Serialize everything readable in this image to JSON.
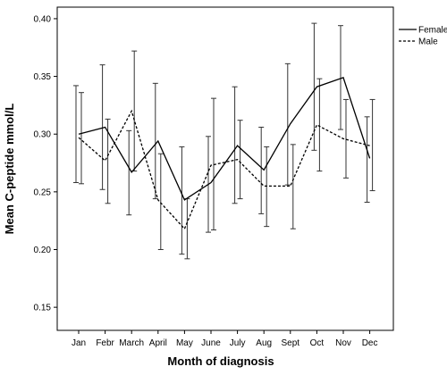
{
  "chart_data": {
    "type": "line",
    "xlabel": "Month of diagnosis",
    "ylabel": "Mean C-peptide mmol/L",
    "categories": [
      "Jan",
      "Febr",
      "March",
      "April",
      "May",
      "June",
      "July",
      "Aug",
      "Sept",
      "Oct",
      "Nov",
      "Dec"
    ],
    "ylim": [
      0.13,
      0.41
    ],
    "yticks": [
      "0.15",
      "0.20",
      "0.25",
      "0.30",
      "0.35",
      "0.40"
    ],
    "ytick_values": [
      0.15,
      0.2,
      0.25,
      0.3,
      0.35,
      0.4
    ],
    "grid": false,
    "legend_position": "top-right",
    "series": [
      {
        "name": "Female",
        "dash": "solid",
        "values": [
          0.3,
          0.306,
          0.267,
          0.294,
          0.243,
          0.258,
          0.29,
          0.269,
          0.309,
          0.341,
          0.349,
          0.279
        ],
        "lower": [
          0.258,
          0.252,
          0.23,
          0.244,
          0.196,
          0.215,
          0.24,
          0.231,
          0.256,
          0.286,
          0.304,
          0.241
        ],
        "upper": [
          0.342,
          0.36,
          0.303,
          0.344,
          0.289,
          0.298,
          0.341,
          0.306,
          0.361,
          0.396,
          0.394,
          0.315
        ]
      },
      {
        "name": "Male",
        "dash": "dashed",
        "values": [
          0.297,
          0.277,
          0.32,
          0.243,
          0.218,
          0.273,
          0.278,
          0.255,
          0.255,
          0.308,
          0.296,
          0.29
        ],
        "lower": [
          0.257,
          0.24,
          0.268,
          0.2,
          0.192,
          0.217,
          0.244,
          0.22,
          0.218,
          0.268,
          0.262,
          0.251
        ],
        "upper": [
          0.336,
          0.313,
          0.372,
          0.283,
          0.244,
          0.331,
          0.312,
          0.289,
          0.291,
          0.348,
          0.33,
          0.33
        ]
      }
    ]
  }
}
